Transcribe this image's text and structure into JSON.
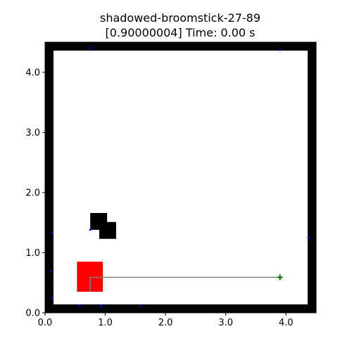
{
  "plot": {
    "title_line1": "shadowed-broomstick-27-89",
    "title_line2": "[0.90000004] Time: 0.00 s"
  },
  "chart_data": {
    "type": "scatter",
    "xlim": [
      0.0,
      4.5
    ],
    "ylim": [
      0.0,
      4.5
    ],
    "x_ticks": [
      "0.0",
      "1.0",
      "2.0",
      "3.0",
      "4.0"
    ],
    "y_ticks": [
      "0.0",
      "1.0",
      "2.0",
      "3.0",
      "4.0"
    ],
    "grid": false,
    "walls": {
      "thickness": 0.14,
      "color": "#000000"
    },
    "obstacles": [
      {
        "x": 0.75,
        "y": 1.38,
        "w": 0.28,
        "h": 0.28,
        "color": "#000000"
      },
      {
        "x": 0.9,
        "y": 1.23,
        "w": 0.28,
        "h": 0.28,
        "color": "#000000"
      }
    ],
    "agent": {
      "x": 0.53,
      "y": 0.35,
      "w": 0.43,
      "h": 0.5,
      "color": "#ff0000"
    },
    "path": {
      "points": [
        [
          0.75,
          0.35
        ],
        [
          0.75,
          0.59
        ],
        [
          3.9,
          0.59
        ]
      ],
      "color": "#808080"
    },
    "goal": {
      "x": 3.9,
      "y": 0.59,
      "marker": "+",
      "color": "#007000"
    },
    "points": {
      "color": "#0000ff",
      "xy": [
        [
          0.75,
          4.4
        ],
        [
          3.9,
          4.37
        ],
        [
          0.12,
          1.33
        ],
        [
          0.75,
          1.38
        ],
        [
          4.37,
          1.25
        ],
        [
          0.1,
          0.7
        ],
        [
          0.12,
          0.24
        ],
        [
          0.57,
          0.12
        ],
        [
          0.93,
          0.12
        ],
        [
          1.58,
          0.12
        ]
      ]
    }
  }
}
